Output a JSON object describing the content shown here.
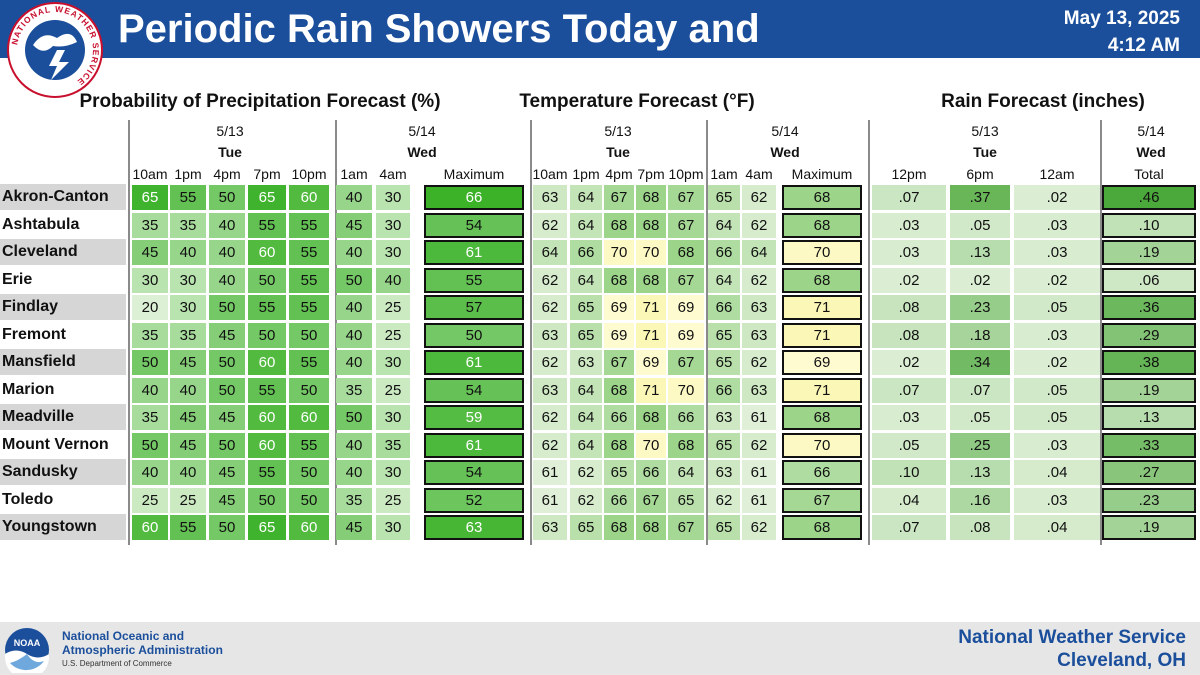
{
  "header": {
    "title": "Periodic Rain Showers Today and Tonight",
    "date": "May 13, 2025",
    "time": "4:12 AM",
    "logo_text": "NATIONAL WEATHER SERVICE",
    "color": "#1b4f9c"
  },
  "groups": {
    "pop": {
      "title": "Probability of Precipitation Forecast (%)",
      "day1_date": "5/13",
      "day1_name": "Tue",
      "day2_date": "5/14",
      "day2_name": "Wed",
      "columns": [
        "10am",
        "1pm",
        "4pm",
        "7pm",
        "10pm",
        "1am",
        "4am",
        "Maximum"
      ]
    },
    "temp": {
      "title": "Temperature Forecast (°F)",
      "day1_date": "5/13",
      "day1_name": "Tue",
      "day2_date": "5/14",
      "day2_name": "Wed",
      "columns": [
        "10am",
        "1pm",
        "4pm",
        "7pm",
        "10pm",
        "1am",
        "4am",
        "Maximum"
      ]
    },
    "rain": {
      "title": "Rain Forecast (inches)",
      "day1_date": "5/13",
      "day1_name": "Tue",
      "day2_date": "5/14",
      "day2_name": "Wed",
      "columns": [
        "12pm",
        "6pm",
        "12am",
        "Total"
      ]
    }
  },
  "rows": [
    {
      "city": "Akron-Canton",
      "pop": [
        65,
        55,
        50,
        65,
        60,
        40,
        30,
        66
      ],
      "temp": [
        63,
        64,
        67,
        68,
        67,
        65,
        62,
        68
      ],
      "rain": [
        ".07",
        ".37",
        ".02",
        ".46"
      ]
    },
    {
      "city": "Ashtabula",
      "pop": [
        35,
        35,
        40,
        55,
        55,
        45,
        30,
        54
      ],
      "temp": [
        62,
        64,
        68,
        68,
        67,
        64,
        62,
        68
      ],
      "rain": [
        ".03",
        ".05",
        ".03",
        ".10"
      ]
    },
    {
      "city": "Cleveland",
      "pop": [
        45,
        40,
        40,
        60,
        55,
        40,
        30,
        61
      ],
      "temp": [
        64,
        66,
        70,
        70,
        68,
        66,
        64,
        70
      ],
      "rain": [
        ".03",
        ".13",
        ".03",
        ".19"
      ]
    },
    {
      "city": "Erie",
      "pop": [
        30,
        30,
        40,
        50,
        55,
        50,
        40,
        55
      ],
      "temp": [
        62,
        64,
        68,
        68,
        67,
        64,
        62,
        68
      ],
      "rain": [
        ".02",
        ".02",
        ".02",
        ".06"
      ]
    },
    {
      "city": "Findlay",
      "pop": [
        20,
        30,
        50,
        55,
        55,
        40,
        25,
        57
      ],
      "temp": [
        62,
        65,
        69,
        71,
        69,
        66,
        63,
        71
      ],
      "rain": [
        ".08",
        ".23",
        ".05",
        ".36"
      ]
    },
    {
      "city": "Fremont",
      "pop": [
        35,
        35,
        45,
        50,
        50,
        40,
        25,
        50
      ],
      "temp": [
        63,
        65,
        69,
        71,
        69,
        65,
        63,
        71
      ],
      "rain": [
        ".08",
        ".18",
        ".03",
        ".29"
      ]
    },
    {
      "city": "Mansfield",
      "pop": [
        50,
        45,
        50,
        60,
        55,
        40,
        30,
        61
      ],
      "temp": [
        62,
        63,
        67,
        69,
        67,
        65,
        62,
        69
      ],
      "rain": [
        ".02",
        ".34",
        ".02",
        ".38"
      ]
    },
    {
      "city": "Marion",
      "pop": [
        40,
        40,
        50,
        55,
        50,
        35,
        25,
        54
      ],
      "temp": [
        63,
        64,
        68,
        71,
        70,
        66,
        63,
        71
      ],
      "rain": [
        ".07",
        ".07",
        ".05",
        ".19"
      ]
    },
    {
      "city": "Meadville",
      "pop": [
        35,
        45,
        45,
        60,
        60,
        50,
        30,
        59
      ],
      "temp": [
        62,
        64,
        66,
        68,
        66,
        63,
        61,
        68
      ],
      "rain": [
        ".03",
        ".05",
        ".05",
        ".13"
      ]
    },
    {
      "city": "Mount Vernon",
      "pop": [
        50,
        45,
        50,
        60,
        55,
        40,
        35,
        61
      ],
      "temp": [
        62,
        64,
        68,
        70,
        68,
        65,
        62,
        70
      ],
      "rain": [
        ".05",
        ".25",
        ".03",
        ".33"
      ]
    },
    {
      "city": "Sandusky",
      "pop": [
        40,
        40,
        45,
        55,
        50,
        40,
        30,
        54
      ],
      "temp": [
        61,
        62,
        65,
        66,
        64,
        63,
        61,
        66
      ],
      "rain": [
        ".10",
        ".13",
        ".04",
        ".27"
      ]
    },
    {
      "city": "Toledo",
      "pop": [
        25,
        25,
        45,
        50,
        50,
        35,
        25,
        52
      ],
      "temp": [
        61,
        62,
        66,
        67,
        65,
        62,
        61,
        67
      ],
      "rain": [
        ".04",
        ".16",
        ".03",
        ".23"
      ]
    },
    {
      "city": "Youngstown",
      "pop": [
        60,
        55,
        50,
        65,
        60,
        45,
        30,
        63
      ],
      "temp": [
        63,
        65,
        68,
        68,
        67,
        65,
        62,
        68
      ],
      "rain": [
        ".07",
        ".08",
        ".04",
        ".19"
      ]
    }
  ],
  "colors": {
    "pop_low": "#e3f3dc",
    "pop_high": "#3cb229",
    "temp_low": "#e0f0d8",
    "temp_high": "#9cd48a",
    "temp_warm": "#fbf7b7",
    "rain_low": "#e2f1da",
    "rain_high": "#4ba83a",
    "city_band": "#d6d6d6",
    "divider": "#8a8a8a"
  },
  "footer": {
    "noaa_name_line1": "National Oceanic and",
    "noaa_name_line2": "Atmospheric Administration",
    "noaa_dept": "U.S. Department of Commerce",
    "noaa_logo_text": "NOAA",
    "nws_name": "National Weather Service",
    "nws_office": "Cleveland, OH"
  }
}
